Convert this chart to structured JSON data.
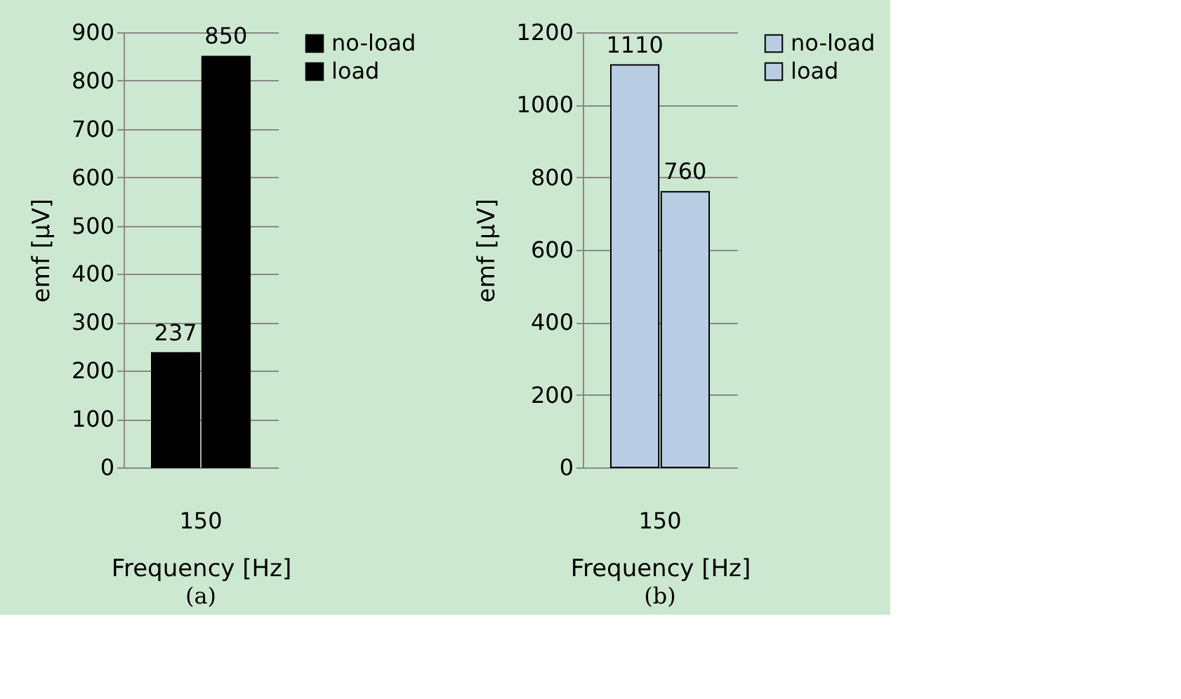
{
  "chart_data": [
    {
      "type": "bar",
      "categories": [
        "150"
      ],
      "xlabel": "Frequency [Hz]",
      "ylabel": "emf [µV]",
      "series": [
        {
          "name": "no-load",
          "color": "#000000",
          "values": [
            237
          ]
        },
        {
          "name": "load",
          "color": "#000000",
          "values": [
            850
          ]
        }
      ],
      "ylim": [
        0,
        900
      ],
      "yticks": [
        0,
        100,
        200,
        300,
        400,
        500,
        600,
        700,
        800,
        900
      ],
      "grid": "y",
      "legend": "right",
      "data_labels": true,
      "annotations": [
        "(a)"
      ]
    },
    {
      "type": "bar",
      "categories": [
        "150"
      ],
      "xlabel": "Frequency [Hz]",
      "ylabel": "emf [µV]",
      "series": [
        {
          "name": "no-load",
          "color": "#b9cde5",
          "values": [
            1110
          ]
        },
        {
          "name": "load",
          "color": "#b9cde5",
          "values": [
            760
          ]
        }
      ],
      "ylim": [
        0,
        1200
      ],
      "yticks": [
        0,
        200,
        400,
        600,
        800,
        1000,
        1200
      ],
      "grid": "y",
      "legend": "right",
      "data_labels": true,
      "annotations": [
        "(b)"
      ]
    }
  ]
}
